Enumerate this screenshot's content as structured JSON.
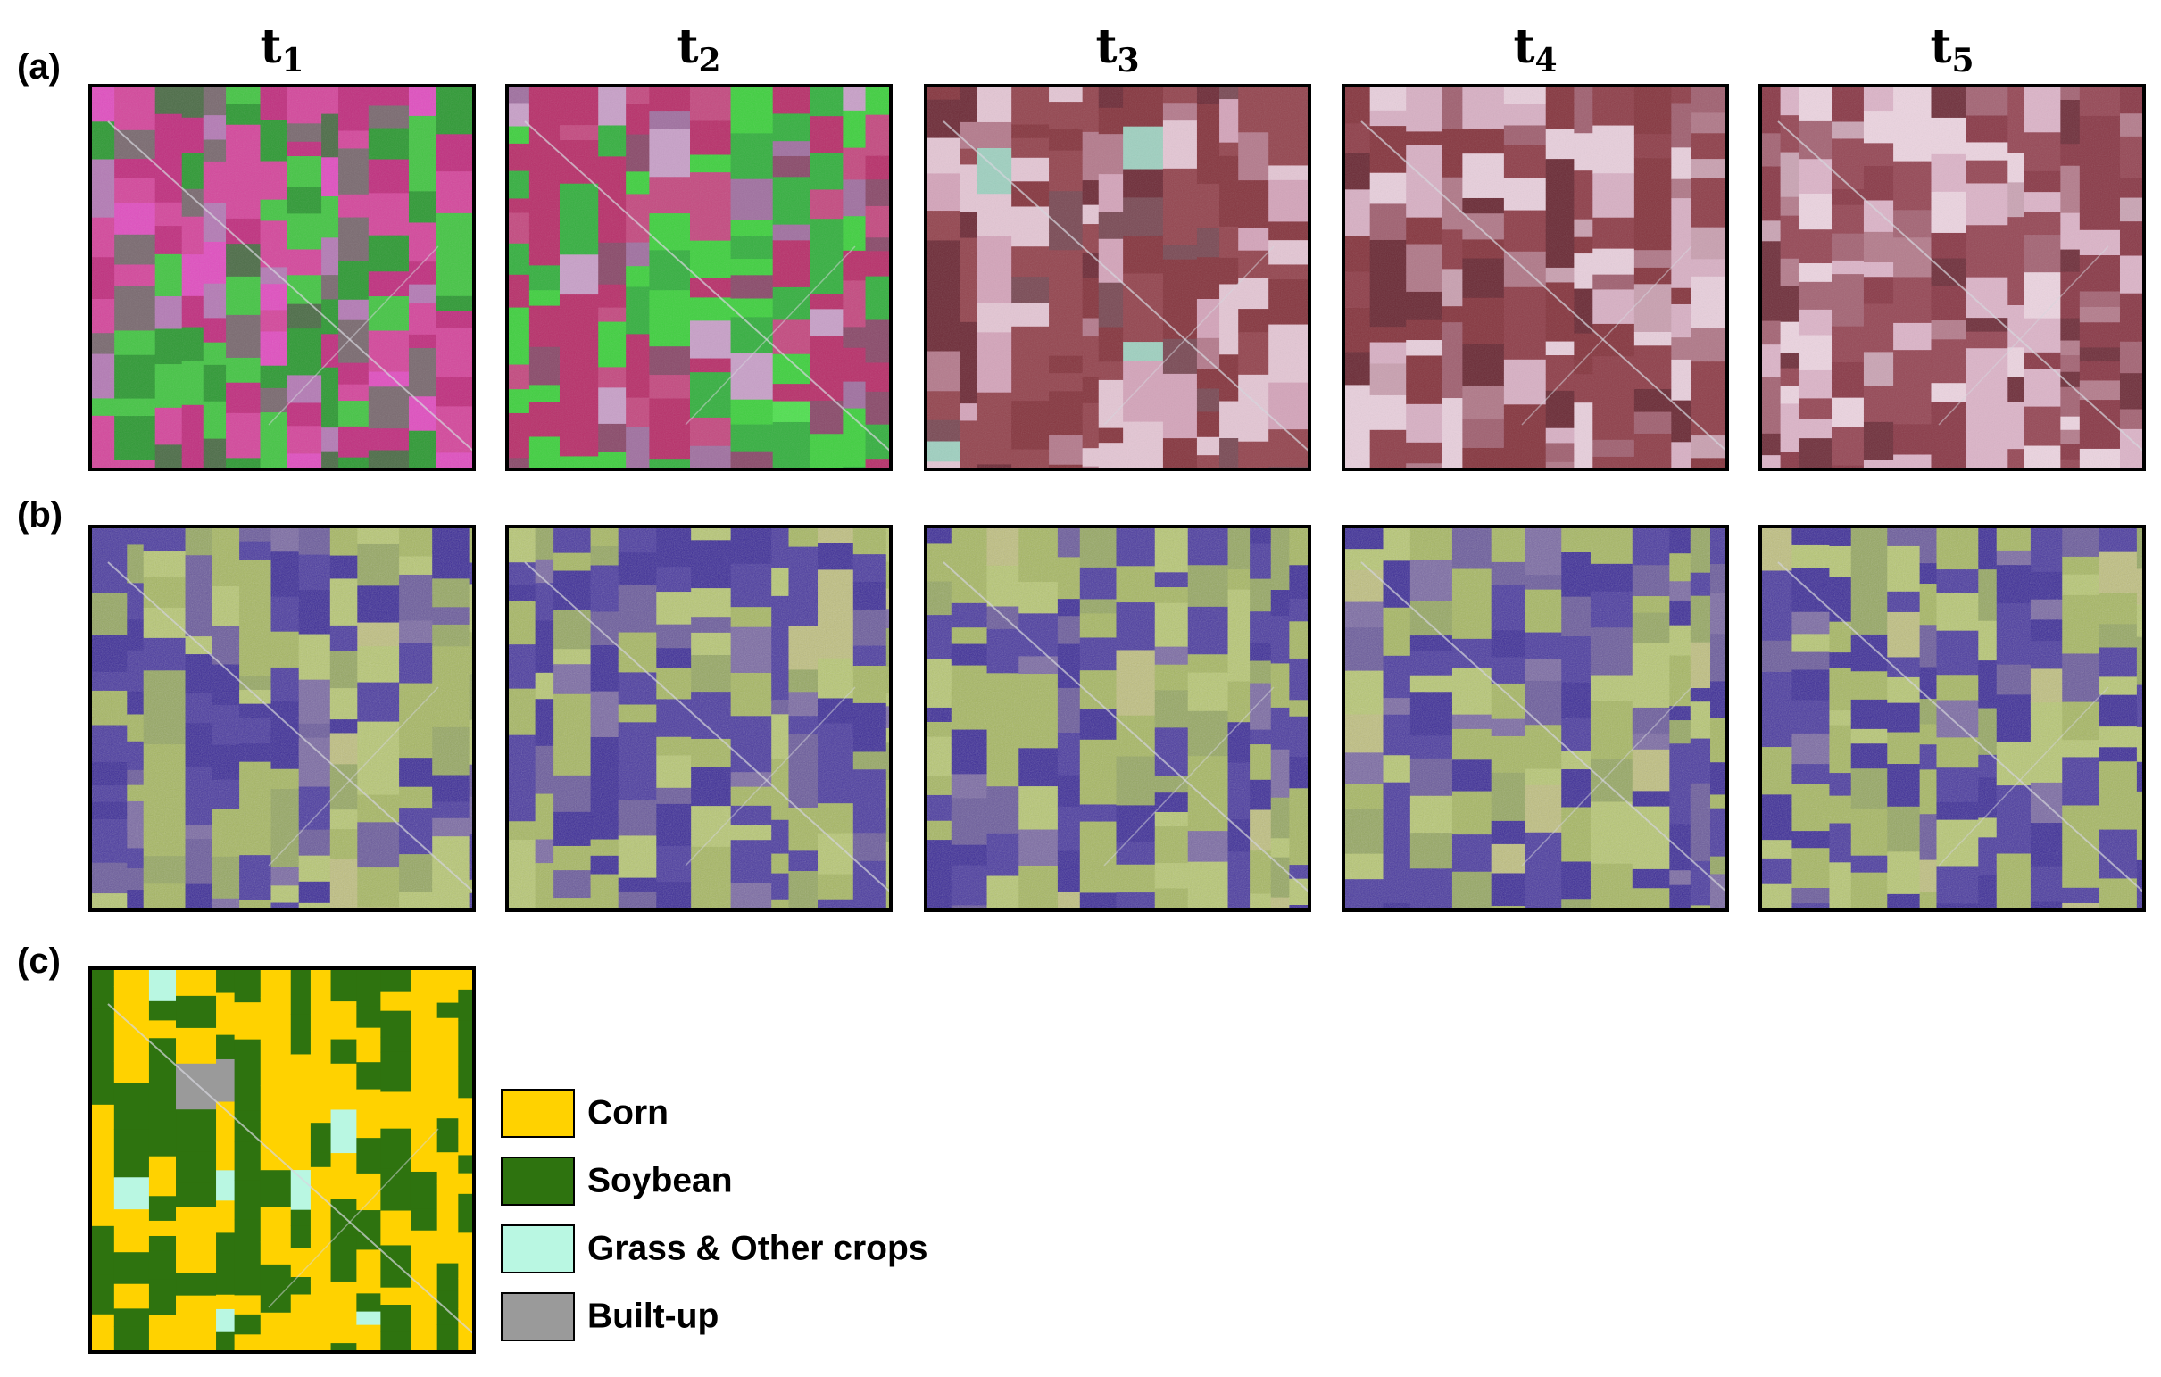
{
  "rows": [
    "(a)",
    "(b)",
    "(c)"
  ],
  "columns": [
    {
      "base": "t",
      "sub": "1"
    },
    {
      "base": "t",
      "sub": "2"
    },
    {
      "base": "t",
      "sub": "3"
    },
    {
      "base": "t",
      "sub": "4"
    },
    {
      "base": "t",
      "sub": "5"
    }
  ],
  "legend": [
    {
      "label": "Corn",
      "color": "#ffd200"
    },
    {
      "label": "Soybean",
      "color": "#2e730f"
    },
    {
      "label": "Grass & Other crops",
      "color": "#b9f7e2"
    },
    {
      "label": "Built-up",
      "color": "#9a9a9a"
    }
  ]
}
